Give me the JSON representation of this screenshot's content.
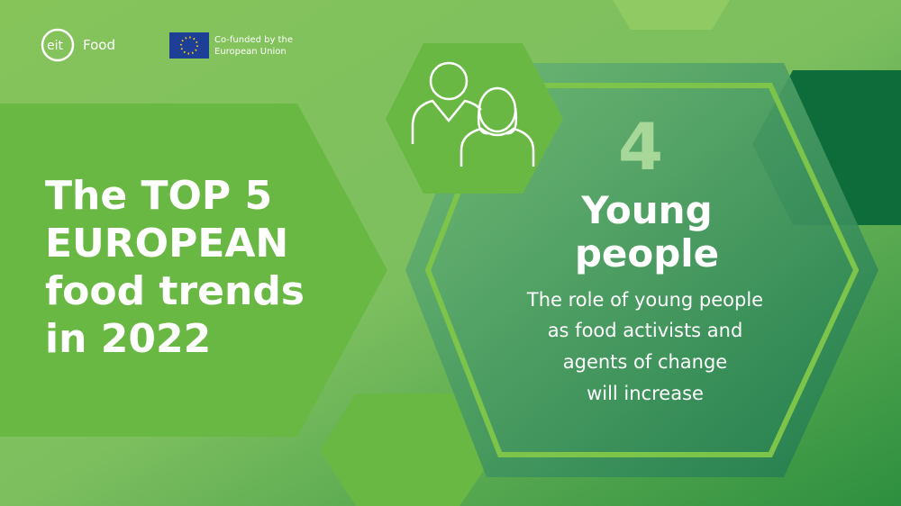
{
  "header": {
    "logo": {
      "mark": "eit",
      "name": "Food"
    },
    "funding": [
      "Co-funded by the",
      "European Union"
    ]
  },
  "title": [
    "The TOP 5",
    "EUROPEAN",
    "food trends",
    "in 2022"
  ],
  "trend": {
    "number": "4",
    "heading": [
      "Young",
      "people"
    ],
    "description": [
      "The role of young people",
      "as food activists and",
      "agents of change",
      "will increase"
    ]
  }
}
